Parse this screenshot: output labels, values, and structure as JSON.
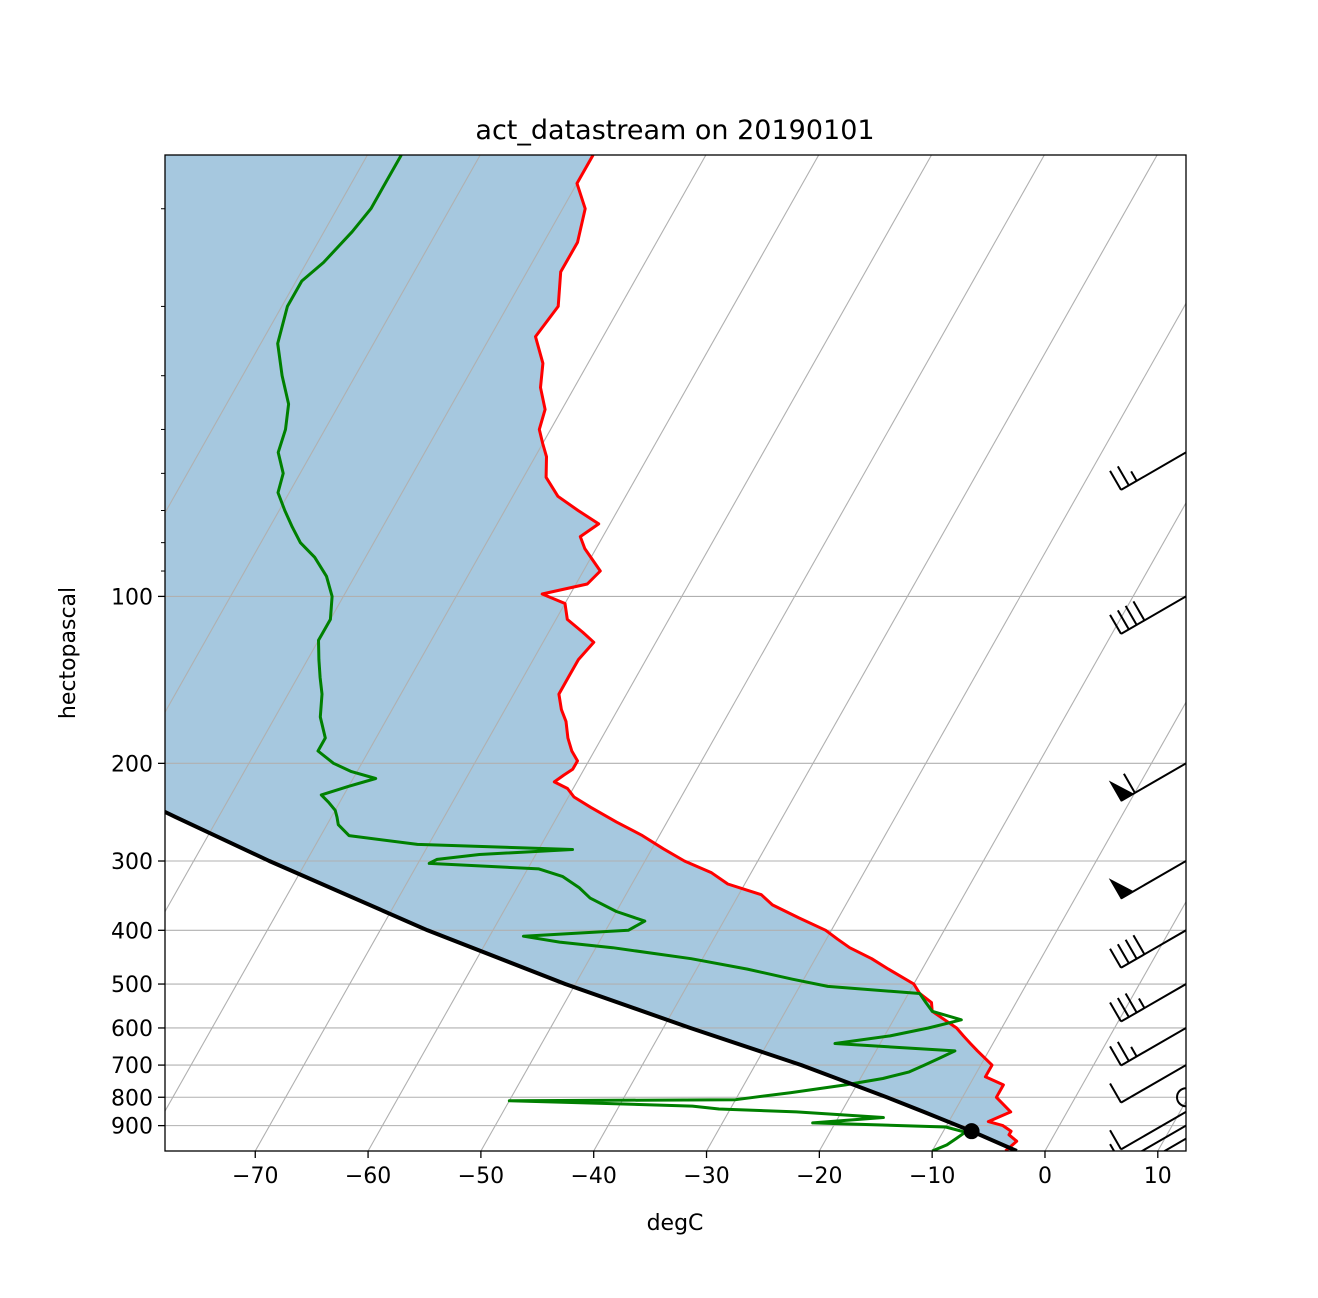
{
  "chart_data": {
    "type": "line",
    "subtype": "skew-t log-p",
    "title": "act_datastream on 20190101",
    "xlabel": "degC",
    "ylabel": "hectopascal",
    "xlim": [
      -78,
      12.5
    ],
    "ylim": [
      1000,
      16
    ],
    "yscale": "log",
    "x_ticks": [
      -70,
      -60,
      -50,
      -40,
      -30,
      -20,
      -10,
      0,
      10
    ],
    "x_tick_labels": [
      "−70",
      "−60",
      "−50",
      "−40",
      "−30",
      "−20",
      "−10",
      "0",
      "10"
    ],
    "y_ticks": [
      100,
      200,
      300,
      400,
      500,
      600,
      700,
      800,
      900
    ],
    "y_tick_labels": [
      "100",
      "200",
      "300",
      "400",
      "500",
      "600",
      "700",
      "800",
      "900"
    ],
    "y_minor_ticks": [
      20,
      30,
      40,
      50,
      60,
      70,
      80,
      90
    ],
    "grid": true,
    "isotherm_lines": [
      -110,
      -100,
      -90,
      -80,
      -70,
      -60,
      -50,
      -40,
      -30,
      -20,
      -10,
      0,
      10,
      20
    ],
    "colors": {
      "temperature": "#ff0000",
      "dewpoint": "#008000",
      "parcel": "#000000",
      "cape_shading": "#a6c8df",
      "grid": "#b0b0b0",
      "barbs": "#000000"
    },
    "series": [
      {
        "key": "temperature",
        "pressure": [
          1000,
          960,
          935,
          921,
          900,
          885,
          850,
          800,
          760,
          735,
          700,
          660,
          640,
          620,
          600,
          560,
          540,
          520,
          500,
          470,
          450,
          430,
          415,
          400,
          380,
          360,
          345,
          330,
          315,
          300,
          285,
          270,
          255,
          240,
          230,
          222,
          216,
          210,
          205,
          198,
          190,
          180,
          168,
          160,
          150,
          140,
          130,
          121,
          116,
          110,
          103,
          99,
          95,
          90,
          82,
          78,
          74,
          70,
          66,
          61,
          56,
          53,
          50,
          46,
          42,
          38,
          34,
          30,
          26,
          23,
          20,
          18,
          16
        ],
        "temperature": [
          -3.5,
          -3.0,
          -4.0,
          -4.0,
          -5.0,
          -6.5,
          -5.0,
          -7.0,
          -7.0,
          -9.0,
          -9.0,
          -11.0,
          -12.0,
          -13.0,
          -14.0,
          -17.0,
          -17.5,
          -19.0,
          -20.0,
          -23.0,
          -25.0,
          -27.5,
          -29.0,
          -30.5,
          -33.5,
          -36.5,
          -38.0,
          -41.5,
          -43.5,
          -46.5,
          -49.0,
          -51.5,
          -54.5,
          -57.5,
          -59.5,
          -60.5,
          -62.0,
          -61.5,
          -61.0,
          -61.0,
          -62.0,
          -63.0,
          -64.0,
          -65.0,
          -66.0,
          -66.0,
          -66.0,
          -65.5,
          -67.0,
          -69.0,
          -70.0,
          -72.5,
          -69.0,
          -68.5,
          -71.0,
          -72.0,
          -71.0,
          -73.5,
          -76.0,
          -78.0,
          -79.0,
          -80.0,
          -81.0,
          -81.5,
          -83.0,
          -84.0,
          -86.0,
          -85.5,
          -87.0,
          -87.0,
          -88.0,
          -90.0,
          -90.0
        ]
      },
      {
        "key": "dewpoint",
        "pressure": [
          1000,
          975,
          950,
          925,
          905,
          890,
          870,
          850,
          840,
          830,
          820,
          812,
          808,
          800,
          785,
          760,
          740,
          720,
          700,
          680,
          660,
          640,
          620,
          600,
          580,
          560,
          540,
          520,
          505,
          490,
          470,
          450,
          430,
          420,
          410,
          400,
          385,
          370,
          350,
          335,
          320,
          310,
          303,
          298,
          292,
          286,
          280,
          270,
          258,
          250,
          243,
          235,
          228,
          220,
          213,
          207,
          200,
          190,
          180,
          165,
          150,
          140,
          130,
          120,
          110,
          100,
          92,
          85,
          80,
          75,
          70,
          65,
          60,
          55,
          50,
          45,
          40,
          35,
          30,
          27,
          25,
          22,
          20,
          18,
          16
        ],
        "temperature": [
          -10.0,
          -9.0,
          -8.5,
          -8.0,
          -10.0,
          -22.0,
          -16.0,
          -24.0,
          -31.0,
          -33.5,
          -42.0,
          -50.0,
          -30.0,
          -28.5,
          -25.5,
          -21.0,
          -18.0,
          -16.0,
          -15.0,
          -14.0,
          -13.0,
          -24.0,
          -19.5,
          -16.5,
          -14.0,
          -17.0,
          -18.0,
          -19.0,
          -27.5,
          -31.0,
          -35.5,
          -41.0,
          -48.5,
          -53.5,
          -57.0,
          -48.0,
          -47.0,
          -50.0,
          -53.0,
          -54.5,
          -56.5,
          -59.0,
          -69.0,
          -68.5,
          -65.0,
          -57.0,
          -71.0,
          -77.5,
          -79.0,
          -79.5,
          -80.0,
          -81.0,
          -82.0,
          -80.0,
          -78.0,
          -80.5,
          -82.5,
          -84.5,
          -84.5,
          -86.0,
          -87.0,
          -88.0,
          -89.0,
          -90.0,
          -90.0,
          -91.0,
          -92.5,
          -94.5,
          -96.5,
          -98.0,
          -99.5,
          -101.0,
          -101.5,
          -103.0,
          -103.5,
          -104.5,
          -106.5,
          -108.5,
          -109.5,
          -109.5,
          -108.5,
          -107.5,
          -107.0,
          -107.0,
          -107.0
        ]
      },
      {
        "key": "parcel",
        "pressure": [
          1000,
          921,
          850,
          800,
          700,
          600,
          500,
          400,
          300,
          250,
          200,
          150,
          100,
          70,
          50,
          30,
          20,
          16
        ],
        "temperature": [
          -2.5,
          -7.5,
          -12.7,
          -16.7,
          -25.9,
          -37.6,
          -50.9,
          -65.8,
          -83.3,
          -93.8,
          -106.3,
          -121.6,
          -141.1,
          -155.3,
          -167.4,
          -185.2,
          -198.3,
          -204.7
        ]
      }
    ],
    "lcl": {
      "pressure": 921,
      "temperature": -7.5
    },
    "wind_barbs": [
      {
        "pressure": 55,
        "speed_kt": 25
      },
      {
        "pressure": 100,
        "speed_kt": 40
      },
      {
        "pressure": 200,
        "speed_kt": 60
      },
      {
        "pressure": 300,
        "speed_kt": 50
      },
      {
        "pressure": 400,
        "speed_kt": 40
      },
      {
        "pressure": 500,
        "speed_kt": 35
      },
      {
        "pressure": 600,
        "speed_kt": 25
      },
      {
        "pressure": 700,
        "speed_kt": 10
      },
      {
        "pressure": 800,
        "speed_kt": 0
      },
      {
        "pressure": 850,
        "speed_kt": 10
      },
      {
        "pressure": 900,
        "speed_kt": 10
      },
      {
        "pressure": 950,
        "speed_kt": 10
      }
    ]
  }
}
